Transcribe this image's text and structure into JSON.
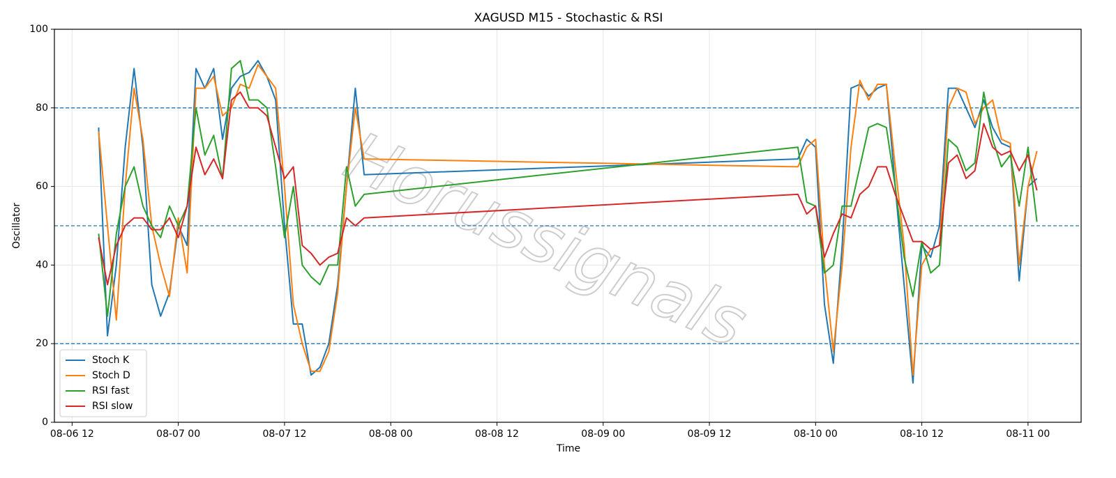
{
  "chart_data": {
    "type": "line",
    "title": "XAGUSD M15 - Stochastic & RSI",
    "xlabel": "Time",
    "ylabel": "Oscillator",
    "watermark": "Horussignals",
    "x": [
      "08-06 15",
      "08-06 16",
      "08-06 17",
      "08-06 18",
      "08-06 19",
      "08-06 20",
      "08-06 21",
      "08-06 22",
      "08-06 23",
      "08-07 00",
      "08-07 01",
      "08-07 02",
      "08-07 03",
      "08-07 04",
      "08-07 05",
      "08-07 06",
      "08-07 07",
      "08-07 08",
      "08-07 09",
      "08-07 10",
      "08-07 11",
      "08-07 12",
      "08-07 13",
      "08-07 14",
      "08-07 15",
      "08-07 16",
      "08-07 17",
      "08-07 18",
      "08-07 19",
      "08-07 20",
      "08-07 21",
      "08-09 22",
      "08-09 23",
      "08-10 00",
      "08-10 01",
      "08-10 02",
      "08-10 03",
      "08-10 04",
      "08-10 05",
      "08-10 06",
      "08-10 07",
      "08-10 08",
      "08-10 09",
      "08-10 10",
      "08-10 11",
      "08-10 12",
      "08-10 13",
      "08-10 14",
      "08-10 15",
      "08-10 16",
      "08-10 17",
      "08-10 18",
      "08-10 19",
      "08-10 20",
      "08-10 21",
      "08-10 22",
      "08-10 23",
      "08-11 00",
      "08-11 01"
    ],
    "series": [
      {
        "name": "Stoch K",
        "color": "#1f77b4",
        "values": [
          75,
          22,
          40,
          70,
          90,
          70,
          35,
          27,
          33,
          50,
          45,
          90,
          85,
          90,
          72,
          85,
          88,
          89,
          92,
          88,
          82,
          50,
          25,
          25,
          12,
          14,
          20,
          35,
          60,
          85,
          63,
          67,
          72,
          70,
          30,
          15,
          45,
          85,
          86,
          83,
          85,
          86,
          60,
          35,
          10,
          45,
          42,
          50,
          85,
          85,
          80,
          75,
          82,
          75,
          71,
          70,
          36,
          60,
          62
        ]
      },
      {
        "name": "Stoch D",
        "color": "#ff7f0e",
        "values": [
          74,
          50,
          26,
          60,
          85,
          72,
          50,
          40,
          32,
          52,
          38,
          85,
          85,
          88,
          78,
          80,
          86,
          85,
          91,
          88,
          85,
          60,
          30,
          20,
          13,
          13,
          18,
          33,
          60,
          80,
          67,
          65,
          70,
          72,
          40,
          18,
          40,
          70,
          87,
          82,
          86,
          86,
          65,
          45,
          12,
          40,
          44,
          45,
          80,
          85,
          84,
          76,
          80,
          82,
          72,
          71,
          40,
          60,
          69
        ]
      },
      {
        "name": "RSI fast",
        "color": "#2ca02c",
        "values": [
          48,
          27,
          48,
          60,
          65,
          55,
          50,
          47,
          55,
          50,
          55,
          80,
          68,
          73,
          62,
          90,
          92,
          82,
          82,
          80,
          65,
          47,
          60,
          40,
          37,
          35,
          40,
          40,
          65,
          55,
          58,
          70,
          56,
          55,
          38,
          40,
          55,
          55,
          65,
          75,
          76,
          75,
          60,
          42,
          32,
          46,
          38,
          40,
          72,
          70,
          64,
          66,
          84,
          72,
          65,
          68,
          55,
          70,
          51
        ]
      },
      {
        "name": "RSI slow",
        "color": "#d62728",
        "values": [
          47,
          35,
          45,
          50,
          52,
          52,
          49,
          49,
          52,
          47,
          55,
          70,
          63,
          67,
          62,
          82,
          84,
          80,
          80,
          78,
          70,
          62,
          65,
          45,
          43,
          40,
          42,
          43,
          52,
          50,
          52,
          58,
          53,
          55,
          42,
          48,
          53,
          52,
          58,
          60,
          65,
          65,
          58,
          52,
          46,
          46,
          44,
          45,
          66,
          68,
          62,
          64,
          76,
          70,
          68,
          69,
          64,
          68,
          59
        ]
      }
    ],
    "hlines": [
      20,
      50,
      80
    ],
    "hline_color": "#1f77b4",
    "xlim": [
      "08-06 10",
      "08-11 06"
    ],
    "xticks": [
      "08-06 12",
      "08-07 00",
      "08-07 12",
      "08-08 00",
      "08-08 12",
      "08-09 00",
      "08-09 12",
      "08-10 00",
      "08-10 12",
      "08-11 00"
    ],
    "ylim": [
      0,
      100
    ],
    "yticks": [
      0,
      20,
      40,
      60,
      80,
      100
    ],
    "grid": true,
    "legend": "lower left"
  }
}
